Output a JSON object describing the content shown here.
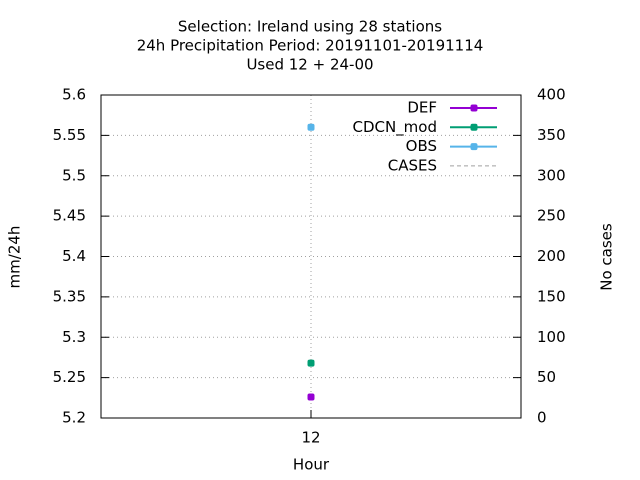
{
  "chart_data": {
    "type": "line",
    "title": [
      "Selection: Ireland using    28 stations",
      "24h Precipitation   Period: 20191101-20191114",
      "Used  12 + 24-00"
    ],
    "x_label": "Hour",
    "y_label": "mm/24h",
    "y2_label": "No cases",
    "x": [
      12
    ],
    "xlim": [
      11,
      13
    ],
    "xticks": [
      12
    ],
    "ylim": [
      5.2,
      5.6
    ],
    "yticks": [
      5.2,
      5.25,
      5.3,
      5.35,
      5.4,
      5.45,
      5.5,
      5.55,
      5.6
    ],
    "y2lim": [
      0,
      400
    ],
    "y2ticks": [
      0,
      50,
      100,
      150,
      200,
      250,
      300,
      350,
      400
    ],
    "grid": true,
    "legend": "top-right",
    "series": [
      {
        "name": "DEF",
        "color": "#9400d3",
        "values": [
          5.226
        ]
      },
      {
        "name": "CDCN_mod",
        "color": "#009e73",
        "values": [
          5.268
        ]
      },
      {
        "name": "OBS",
        "color": "#56b4e9",
        "values": [
          5.56
        ]
      },
      {
        "name": "CASES",
        "color": "#a0a0a0",
        "axis": "y2",
        "dashed": true,
        "values": [
          null
        ]
      }
    ]
  }
}
